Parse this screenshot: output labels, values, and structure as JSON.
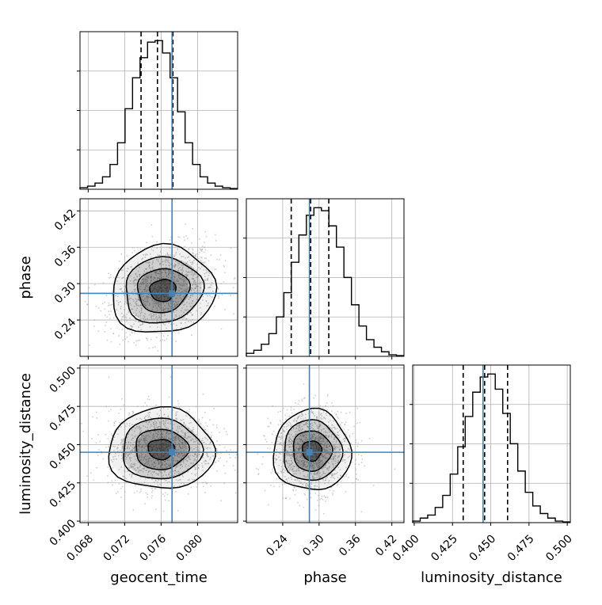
{
  "colors": {
    "truth": "#4682b4",
    "hist": "#000000",
    "grid": "#b0b0b0",
    "contour": "#000000",
    "density": "#000000",
    "scatter": "#9a9a9a"
  },
  "chart_data": {
    "type": "corner",
    "parameters": [
      "geocent_time",
      "phase",
      "luminosity_distance"
    ],
    "truths": {
      "geocent_time": 0.0772,
      "phase": 0.284,
      "luminosity_distance": 0.445
    },
    "quantiles": {
      "geocent_time": [
        0.0738,
        0.0756,
        0.0773
      ],
      "phase": [
        0.254,
        0.286,
        0.316
      ],
      "luminosity_distance": [
        0.432,
        0.446,
        0.461
      ]
    },
    "ranges": {
      "geocent_time": [
        0.0671,
        0.0844
      ],
      "phase": [
        0.18,
        0.44
      ],
      "luminosity_distance": [
        0.399,
        0.502
      ]
    },
    "ticks": {
      "geocent_time": [
        "0.068",
        "0.072",
        "0.076",
        "0.080"
      ],
      "phase": [
        "0.24",
        "0.30",
        "0.36",
        "0.42"
      ],
      "luminosity_distance": [
        "0.400",
        "0.425",
        "0.450",
        "0.475",
        "0.500"
      ]
    },
    "histograms": [
      {
        "param": "geocent_time",
        "counts": [
          1,
          2,
          4,
          8,
          16,
          30,
          52,
          72,
          85,
          95,
          96,
          88,
          72,
          50,
          30,
          16,
          8,
          4,
          2,
          1,
          0.5
        ]
      },
      {
        "param": "phase",
        "counts": [
          2,
          4,
          8,
          15,
          26,
          42,
          62,
          80,
          93,
          98,
          96,
          86,
          72,
          52,
          34,
          20,
          11,
          6,
          3,
          1,
          0.5
        ]
      },
      {
        "param": "luminosity_distance",
        "counts": [
          1,
          3,
          5,
          10,
          18,
          32,
          50,
          70,
          86,
          96,
          98,
          88,
          72,
          52,
          34,
          20,
          11,
          6,
          3,
          1,
          0.5
        ]
      }
    ],
    "joint": [
      {
        "x": "geocent_time",
        "y": "phase",
        "center": [
          0.0762,
          0.289
        ],
        "spread": [
          0.00285,
          0.036
        ],
        "rho": 0.3
      },
      {
        "x": "geocent_time",
        "y": "luminosity_distance",
        "center": [
          0.076,
          0.447
        ],
        "spread": [
          0.0029,
          0.0132
        ],
        "rho": 0.0
      },
      {
        "x": "phase",
        "y": "luminosity_distance",
        "center": [
          0.288,
          0.446
        ],
        "spread": [
          0.032,
          0.0132
        ],
        "rho": 0.0
      }
    ],
    "xlabels": [
      "geocent_time",
      "phase",
      "luminosity_distance"
    ],
    "ylabels": [
      "phase",
      "luminosity_distance"
    ],
    "grid": true
  }
}
